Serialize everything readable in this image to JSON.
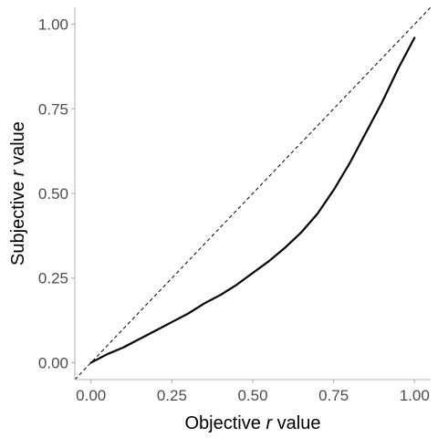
{
  "colors": {
    "background": "#ffffff",
    "axis": "#b3b3b3",
    "tick_text": "#4d4d4d",
    "curve": "#000000",
    "reference_line": "#000000"
  },
  "chart_data": {
    "type": "line",
    "title": "",
    "xlabel_parts": [
      {
        "text": "Objective ",
        "italic": false
      },
      {
        "text": "r",
        "italic": true
      },
      {
        "text": " value",
        "italic": false
      }
    ],
    "ylabel_parts": [
      {
        "text": "Subjective ",
        "italic": false
      },
      {
        "text": "r",
        "italic": true
      },
      {
        "text": " value",
        "italic": false
      }
    ],
    "xlim": [
      -0.05,
      1.05
    ],
    "ylim": [
      -0.05,
      1.05
    ],
    "x_ticks": [
      0,
      0.25,
      0.5,
      0.75,
      1
    ],
    "y_ticks": [
      0,
      0.25,
      0.5,
      0.75,
      1
    ],
    "x_tick_labels": [
      "0.00",
      "0.25",
      "0.50",
      "0.75",
      "1.00"
    ],
    "y_tick_labels": [
      "0.00",
      "0.25",
      "0.50",
      "0.75",
      "1.00"
    ],
    "grid": false,
    "legend": "none",
    "series": [
      {
        "style": "solid",
        "x": [
          0.0,
          0.05,
          0.1,
          0.15,
          0.2,
          0.25,
          0.3,
          0.35,
          0.4,
          0.45,
          0.5,
          0.55,
          0.6,
          0.65,
          0.7,
          0.75,
          0.8,
          0.85,
          0.9,
          0.95,
          1.0
        ],
        "y": [
          0.0,
          0.025,
          0.045,
          0.07,
          0.095,
          0.12,
          0.145,
          0.175,
          0.2,
          0.23,
          0.265,
          0.3,
          0.34,
          0.385,
          0.44,
          0.51,
          0.59,
          0.68,
          0.77,
          0.87,
          0.96
        ]
      }
    ],
    "reference_line": {
      "style": "dashed",
      "x": [
        -0.05,
        1.05
      ],
      "y": [
        -0.05,
        1.05
      ]
    }
  }
}
